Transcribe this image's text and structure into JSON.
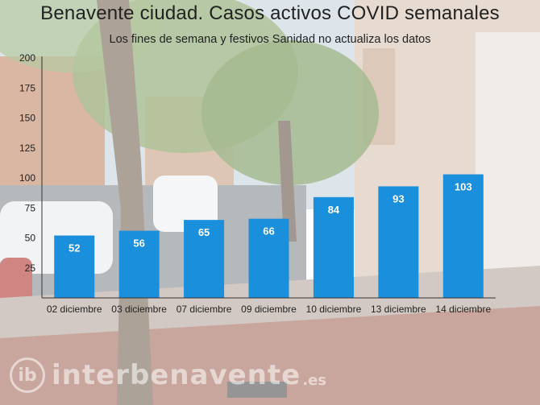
{
  "chart_data": {
    "type": "bar",
    "title": "Benavente ciudad. Casos activos COVID semanales",
    "subtitle": "Los fines de semana y festivos Sanidad no actualiza los datos",
    "categories": [
      "02 diciembre",
      "03 diciembre",
      "07 diciembre",
      "09 diciembre",
      "10 diciembre",
      "13 diciembre",
      "14 diciembre"
    ],
    "values": [
      52,
      56,
      65,
      66,
      84,
      93,
      103
    ],
    "ylim": [
      0,
      200
    ],
    "yticks": [
      25,
      50,
      75,
      100,
      125,
      150,
      175,
      200
    ],
    "xlabel": "",
    "ylabel": "",
    "grid": false,
    "bar_color": "#1a8fdc",
    "label_color": "#ffffff"
  },
  "watermark": {
    "logo_text": "ib",
    "brand": "interbenavente",
    "tld": ".es"
  }
}
